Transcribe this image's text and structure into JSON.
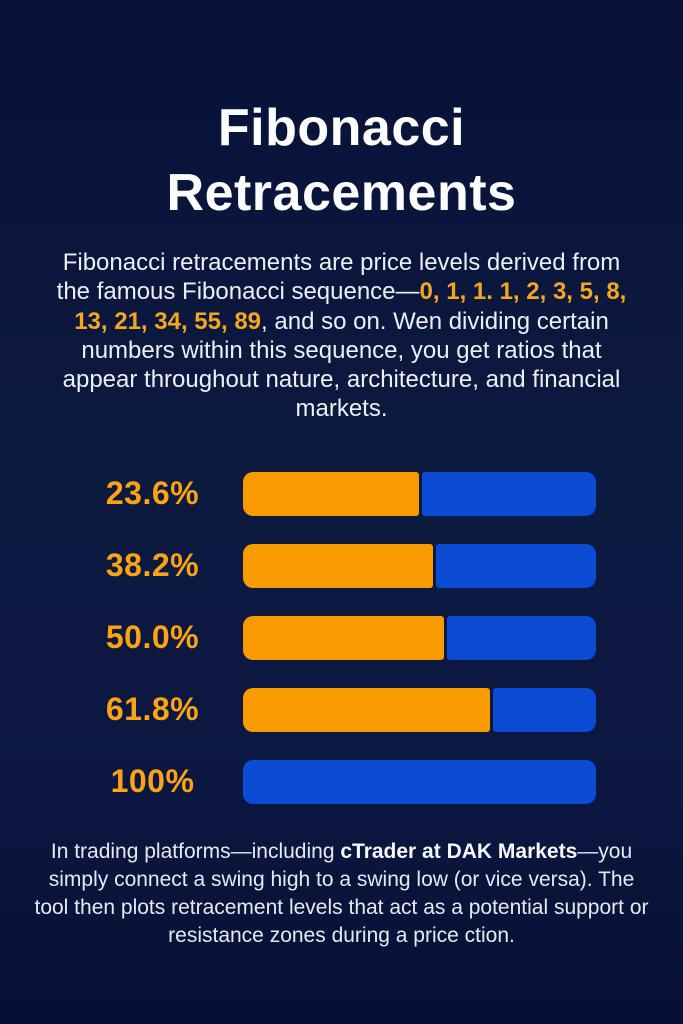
{
  "page": {
    "title": "Fibonacci Retracements"
  },
  "intro": {
    "part1": "Fibonacci retracements are price levels derived from the famous Fibonacci sequence—",
    "sequence": "0, 1, 1. 1, 2, 3, 5, 8, 13, 21, 34, 55, 89",
    "part3": ", and so on. Wen dividing certain numbers within this sequence, you get ratios that appear throughout nature, architecture, and financial markets."
  },
  "chart_data": {
    "type": "bar",
    "orientation": "horizontal",
    "title": "Fibonacci retracement levels",
    "categories": [
      "23.6%",
      "38.2%",
      "50.0%",
      "61.8%",
      "100%"
    ],
    "series": [
      {
        "name": "retraced-portion",
        "color": "#f99b00",
        "values": [
          50,
          54,
          57,
          70,
          0
        ]
      },
      {
        "name": "remaining-portion",
        "color": "#0c4bd3",
        "values": [
          50,
          46,
          43,
          30,
          100
        ]
      }
    ],
    "value_unit": "percent of bar width",
    "legend_position": "none",
    "grid": false,
    "label_color": "#fba312"
  },
  "outro": {
    "part1": "In trading platforms—including ",
    "brand": "cTrader at DAK Markets",
    "part3": "—you simply connect a swing high to a swing low (or vice versa). The tool then plots retracement levels that act as a potential support or resistance zones during a price ction."
  },
  "colors": {
    "background": "#0b1740",
    "title_text": "#fcfcfd",
    "body_text": "#eceff4",
    "accent_orange": "#f5a61f",
    "bar_orange": "#f99b00",
    "bar_blue": "#0c4bd3"
  }
}
